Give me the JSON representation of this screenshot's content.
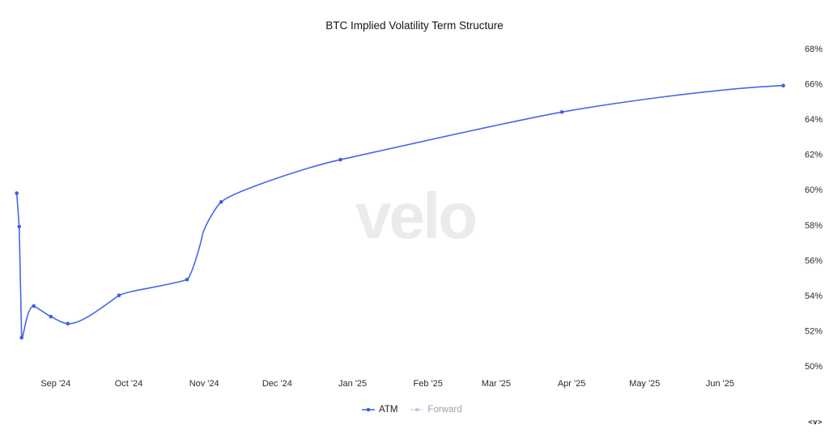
{
  "title": "BTC Implied Volatility Term Structure",
  "watermark": "velo",
  "corner_logo": "<v>",
  "colors": {
    "line": "#4468e8",
    "marker": "#3d5fe2",
    "forward": "#b9c7f6",
    "title_text": "#161616",
    "axis_text": "#2b2b2b",
    "legend_forward_text": "#9aa2ad",
    "watermark": "#ebebeb"
  },
  "legend": [
    {
      "label": "ATM"
    },
    {
      "label": "Forward"
    }
  ],
  "chart_data": {
    "type": "line",
    "title": "BTC Implied Volatility Term Structure",
    "xlabel": "",
    "ylabel": "",
    "x_axis": {
      "unit": "days since 2024-09-01",
      "tick_labels": [
        "Sep '24",
        "Oct '24",
        "Nov '24",
        "Dec '24",
        "Jan '25",
        "Feb '25",
        "Mar '25",
        "Apr '25",
        "May '25",
        "Jun '25"
      ],
      "tick_days": [
        0,
        30,
        61,
        91,
        122,
        153,
        181,
        212,
        242,
        273
      ]
    },
    "y_axis": {
      "side": "right",
      "min": 50,
      "max": 68,
      "tick_values": [
        68,
        66,
        64,
        62,
        60,
        58,
        56,
        54,
        52,
        50
      ],
      "tick_labels": [
        "68%",
        "66%",
        "64%",
        "62%",
        "60%",
        "58%",
        "56%",
        "54%",
        "52%",
        "50%"
      ]
    },
    "grid": false,
    "legend_position": "bottom",
    "series": [
      {
        "name": "ATM",
        "points": [
          {
            "date": "2024-08-16",
            "day": -16,
            "vol": 59.8
          },
          {
            "date": "2024-08-17",
            "day": -15,
            "vol": 57.9
          },
          {
            "date": "2024-08-18",
            "day": -14,
            "vol": 51.6
          },
          {
            "date": "2024-08-23",
            "day": -9,
            "vol": 53.4
          },
          {
            "date": "2024-08-30",
            "day": -2,
            "vol": 52.8
          },
          {
            "date": "2024-09-06",
            "day": 5,
            "vol": 52.4
          },
          {
            "date": "2024-09-27",
            "day": 26,
            "vol": 54.0
          },
          {
            "date": "2024-10-25",
            "day": 54,
            "vol": 54.9
          },
          {
            "date": "2024-11-08",
            "day": 68,
            "vol": 59.3
          },
          {
            "date": "2024-12-27",
            "day": 117,
            "vol": 61.7
          },
          {
            "date": "2025-03-28",
            "day": 208,
            "vol": 64.4
          },
          {
            "date": "2025-06-27",
            "day": 299,
            "vol": 65.9
          }
        ]
      },
      {
        "name": "Forward",
        "points": []
      }
    ]
  }
}
